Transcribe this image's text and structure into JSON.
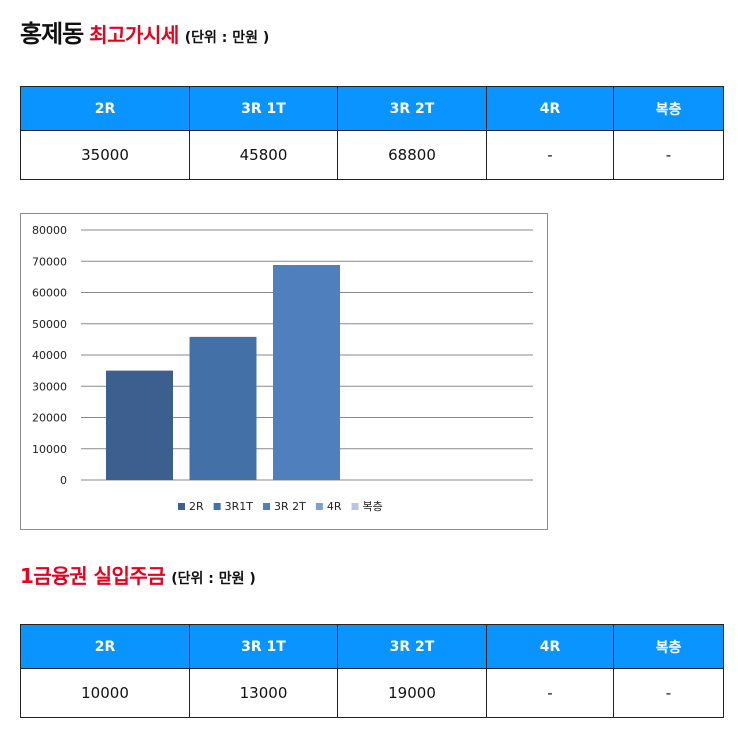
{
  "section1": {
    "title_black": "홍제동",
    "title_red": "최고가시세",
    "unit": "(단위 : 만원 )",
    "headers": [
      "2R",
      "3R 1T",
      "3R 2T",
      "4R",
      "복층"
    ],
    "values": [
      "35000",
      "45800",
      "68800",
      "-",
      "-"
    ]
  },
  "section2": {
    "title_red": "1금융권 실입주금",
    "unit": "(단위 : 만원 )",
    "headers": [
      "2R",
      "3R 1T",
      "3R 2T",
      "4R",
      "복층"
    ],
    "values": [
      "10000",
      "13000",
      "19000",
      "-",
      "-"
    ]
  },
  "colors": {
    "header_bg": "#0a94ff",
    "title_red": "#e8001c"
  },
  "chart_data": {
    "type": "bar",
    "ylim": [
      0,
      80000
    ],
    "yticks": [
      0,
      10000,
      20000,
      30000,
      40000,
      50000,
      60000,
      70000,
      80000
    ],
    "grid": true,
    "legend_position": "bottom",
    "series": [
      {
        "name": "2R",
        "value": 35000,
        "color": "#3d5f8f"
      },
      {
        "name": "3R1T",
        "value": 45800,
        "color": "#4470a8"
      },
      {
        "name": "3R 2T",
        "value": 68800,
        "color": "#4f80bd"
      },
      {
        "name": "4R",
        "value": null,
        "color": "#7f9fd0"
      },
      {
        "name": "복층",
        "value": null,
        "color": "#b7c6e4"
      }
    ]
  }
}
